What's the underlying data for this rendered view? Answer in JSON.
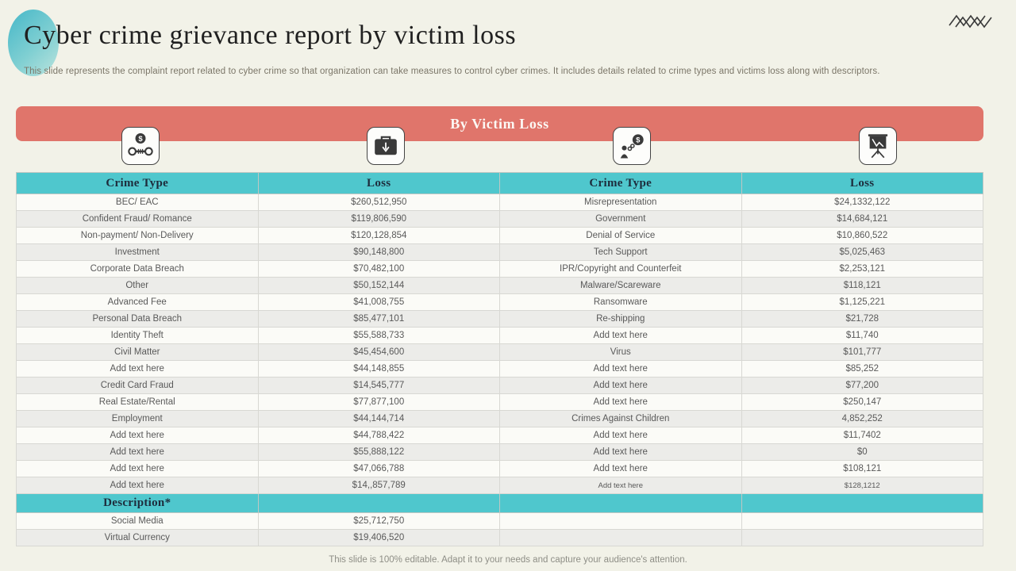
{
  "header": {
    "title": "Cyber crime grievance report by victim loss",
    "subtitle": "This slide represents the complaint report related to cyber crime so that organization can take measures to control cyber crimes. It includes details related to crime types and victims loss along with descriptors."
  },
  "banner": {
    "label": "By Victim Loss"
  },
  "icons": [
    "dollar-handcuffs-icon",
    "briefcase-download-icon",
    "chained-dollar-icon",
    "presentation-graph-icon"
  ],
  "table": {
    "headers": [
      "Crime Type",
      "Loss",
      "Crime Type",
      "Loss"
    ],
    "rows": [
      [
        "BEC/ EAC",
        "$260,512,950",
        "Misrepresentation",
        "$24,1332,122"
      ],
      [
        "Confident Fraud/ Romance",
        "$119,806,590",
        "Government",
        "$14,684,121"
      ],
      [
        "Non-payment/ Non-Delivery",
        "$120,128,854",
        "Denial of Service",
        "$10,860,522"
      ],
      [
        "Investment",
        "$90,148,800",
        "Tech Support",
        "$5,025,463"
      ],
      [
        "Corporate Data Breach",
        "$70,482,100",
        "IPR/Copyright and Counterfeit",
        "$2,253,121"
      ],
      [
        "Other",
        "$50,152,144",
        "Malware/Scareware",
        "$118,121"
      ],
      [
        "Advanced Fee",
        "$41,008,755",
        "Ransomware",
        "$1,125,221"
      ],
      [
        "Personal Data Breach",
        "$85,477,101",
        "Re-shipping",
        "$21,728"
      ],
      [
        "Identity Theft",
        "$55,588,733",
        "Add text here",
        "$11,740"
      ],
      [
        "Civil Matter",
        "$45,454,600",
        "Virus",
        "$101,777"
      ],
      [
        "Add text here",
        "$44,148,855",
        "Add text here",
        "$85,252"
      ],
      [
        "Credit Card Fraud",
        "$14,545,777",
        "Add text here",
        "$77,200"
      ],
      [
        "Real Estate/Rental",
        "$77,877,100",
        "Add text here",
        "$250,147"
      ],
      [
        "Employment",
        "$44,144,714",
        "Crimes Against Children",
        "4,852,252"
      ],
      [
        "Add text here",
        "$44,788,422",
        "Add text here",
        "$11,7402"
      ],
      [
        "Add text here",
        "$55,888,122",
        "Add text here",
        "$0"
      ],
      [
        "Add text here",
        "$47,066,788",
        "Add text here",
        "$108,121"
      ],
      [
        "Add text here",
        "$14,,857,789",
        "Add text here",
        "$128,1212"
      ]
    ],
    "section_label": "Description*",
    "description_rows": [
      [
        "Social Media",
        "$25,712,750",
        "",
        ""
      ],
      [
        "Virtual Currency",
        "$19,406,520",
        "",
        ""
      ]
    ]
  },
  "footer": {
    "note": "This slide is 100% editable. Adapt it to your needs and capture your audience's attention."
  },
  "colors": {
    "background": "#F2F2E8",
    "accent_coral": "#E0756B",
    "accent_teal": "#4FC7CD",
    "header_text": "#1D2C3C",
    "body_text": "#595959"
  }
}
